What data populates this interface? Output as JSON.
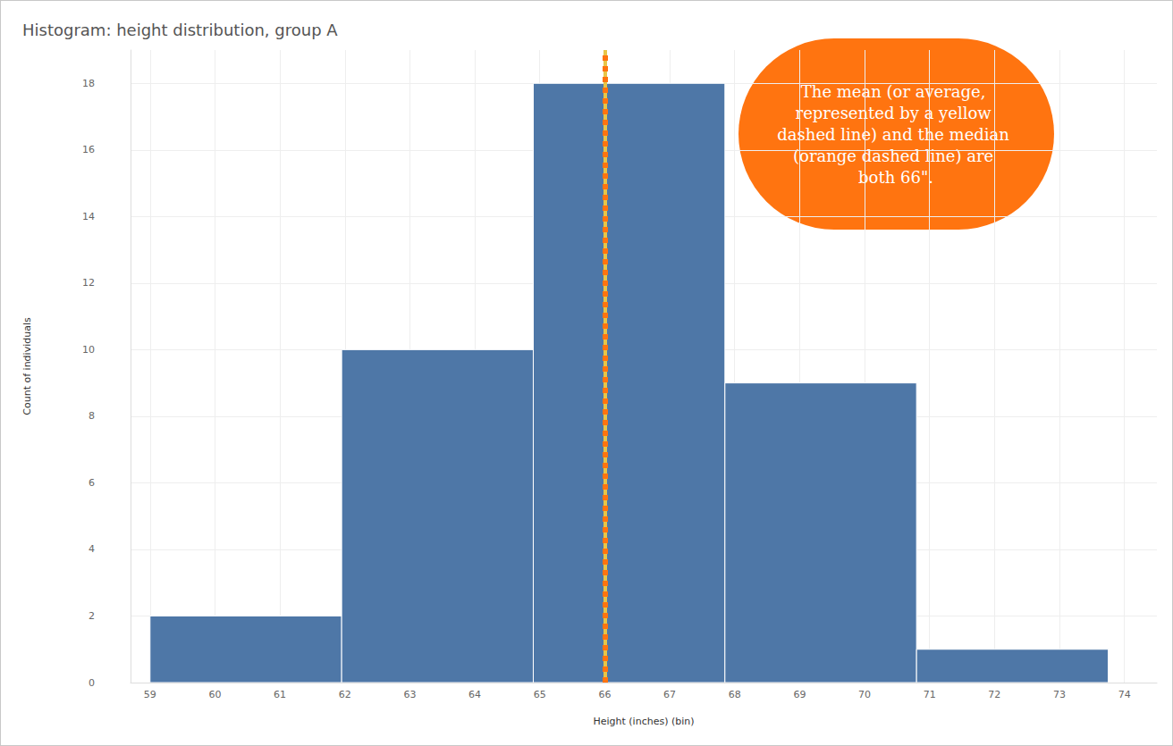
{
  "chart_data": {
    "type": "histogram",
    "title": "Histogram: height distribution, group A",
    "x_label": "Height (inches) (bin)",
    "y_label": "Count of individuals",
    "bins": [
      59,
      61.95,
      64.9,
      67.85,
      70.8,
      73.75
    ],
    "counts": [
      2,
      10,
      18,
      9,
      1
    ],
    "color": "#4e77a7",
    "xlim": [
      58.7,
      74.5
    ],
    "xticks": [
      59,
      60,
      61,
      62,
      63,
      64,
      65,
      66,
      67,
      68,
      69,
      70,
      71,
      72,
      73,
      74
    ],
    "ylim": [
      0,
      19
    ],
    "yticks": [
      0,
      2,
      4,
      6,
      8,
      10,
      12,
      14,
      16,
      18
    ],
    "grid": true,
    "mean": {
      "value": 66,
      "color": "#e8c547",
      "line_style": "dashed"
    },
    "median": {
      "value": 66,
      "color": "#ff7410",
      "line_style": "dashed"
    },
    "annotations": [
      {
        "text": "The mean (or average, represented by a yellow dashed line) and the median (orange dashed line) are both 66\".",
        "color": "#ff7410"
      }
    ]
  }
}
